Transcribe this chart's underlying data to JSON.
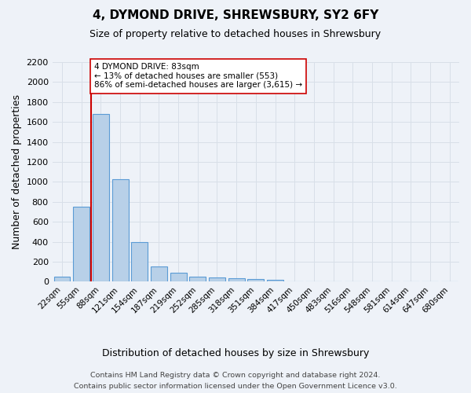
{
  "title": "4, DYMOND DRIVE, SHREWSBURY, SY2 6FY",
  "subtitle": "Size of property relative to detached houses in Shrewsbury",
  "xlabel": "Distribution of detached houses by size in Shrewsbury",
  "ylabel": "Number of detached properties",
  "footer_line1": "Contains HM Land Registry data © Crown copyright and database right 2024.",
  "footer_line2": "Contains public sector information licensed under the Open Government Licence v3.0.",
  "categories": [
    "22sqm",
    "55sqm",
    "88sqm",
    "121sqm",
    "154sqm",
    "187sqm",
    "219sqm",
    "252sqm",
    "285sqm",
    "318sqm",
    "351sqm",
    "384sqm",
    "417sqm",
    "450sqm",
    "483sqm",
    "516sqm",
    "548sqm",
    "581sqm",
    "614sqm",
    "647sqm",
    "680sqm"
  ],
  "bar_values": [
    50,
    750,
    1680,
    1030,
    400,
    150,
    85,
    50,
    40,
    35,
    25,
    20,
    5,
    0,
    0,
    0,
    0,
    0,
    0,
    0,
    0
  ],
  "bar_color": "#b8d0e8",
  "bar_edge_color": "#5b9bd5",
  "ylim": [
    0,
    2200
  ],
  "yticks": [
    0,
    200,
    400,
    600,
    800,
    1000,
    1200,
    1400,
    1600,
    1800,
    2000,
    2200
  ],
  "property_line_x": 1.5,
  "property_line_color": "#cc0000",
  "annotation_text": "4 DYMOND DRIVE: 83sqm\n← 13% of detached houses are smaller (553)\n86% of semi-detached houses are larger (3,615) →",
  "annotation_box_color": "#ffffff",
  "annotation_box_edge_color": "#cc0000",
  "background_color": "#eef2f8",
  "grid_color": "#d8dfe8",
  "title_fontsize": 11,
  "subtitle_fontsize": 9
}
